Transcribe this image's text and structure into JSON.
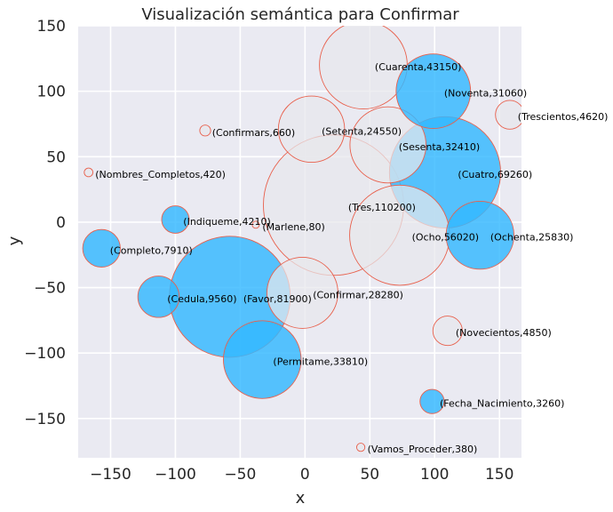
{
  "chart_data": {
    "type": "scatter",
    "title": "Visualización semántica para Confirmar",
    "xlabel": "x",
    "ylabel": "y",
    "xlim": [
      -175,
      167
    ],
    "ylim": [
      -180,
      150
    ],
    "xticks": [
      -150,
      -100,
      -50,
      0,
      50,
      100,
      150
    ],
    "yticks": [
      -150,
      -100,
      -50,
      0,
      50,
      100,
      150
    ],
    "xtick_labels": [
      "−150",
      "−100",
      "−50",
      "0",
      "50",
      "100",
      "150"
    ],
    "ytick_labels": [
      "−150",
      "−100",
      "−50",
      "0",
      "50",
      "100",
      "150"
    ],
    "grid": true,
    "colors": {
      "background": "#EAEAF2",
      "grid": "#FFFFFF",
      "blue": "#33B8FF",
      "gray": "#E8E8EC",
      "edge": "#E8604C"
    },
    "points": [
      {
        "label": "(Favor,81900)",
        "x": -58,
        "y": -57,
        "value": 81900,
        "fill": "blue"
      },
      {
        "label": "(Permitame,33810)",
        "x": -33,
        "y": -105,
        "value": 33810,
        "fill": "blue"
      },
      {
        "label": "(Cuatro,69260)",
        "x": 108,
        "y": 38,
        "value": 69260,
        "fill": "blue"
      },
      {
        "label": "(Ochenta,25830)",
        "x": 135,
        "y": -10,
        "value": 25830,
        "fill": "blue"
      },
      {
        "label": "(Completo,7910)",
        "x": -157,
        "y": -20,
        "value": 7910,
        "fill": "blue"
      },
      {
        "label": "(Cedula,9560)",
        "x": -113,
        "y": -57,
        "value": 9560,
        "fill": "blue"
      },
      {
        "label": "(Indiqueme,4210)",
        "x": -100,
        "y": 2,
        "value": 4210,
        "fill": "blue"
      },
      {
        "label": "(Fecha_Nacimiento,3260)",
        "x": 98,
        "y": -137,
        "value": 3260,
        "fill": "blue"
      },
      {
        "label": "(Noventa,31060)",
        "x": 99,
        "y": 100,
        "value": 31060,
        "fill": "blue"
      },
      {
        "label": "(Setenta,24550)",
        "x": 5,
        "y": 71,
        "value": 24550,
        "fill": "gray"
      },
      {
        "label": "(Confirmar,28280)",
        "x": -2,
        "y": -54,
        "value": 28280,
        "fill": "gray"
      },
      {
        "label": "(Sesenta,32410)",
        "x": 64,
        "y": 59,
        "value": 32410,
        "fill": "gray"
      },
      {
        "label": "(Ocho,56020)",
        "x": 73,
        "y": -10,
        "value": 56020,
        "fill": "gray"
      },
      {
        "label": "(Cuarenta,43150)",
        "x": 45,
        "y": 120,
        "value": 43150,
        "fill": "gray"
      },
      {
        "label": "(Tres,110200)",
        "x": 22,
        "y": 13,
        "value": 110200,
        "fill": "gray"
      },
      {
        "label": "(Trescientos,4620)",
        "x": 158,
        "y": 82,
        "value": 4620,
        "fill": "gray"
      },
      {
        "label": "(Novecientos,4850)",
        "x": 110,
        "y": -83,
        "value": 4850,
        "fill": "gray"
      },
      {
        "label": "(Confirmars,660)",
        "x": -77,
        "y": 70,
        "value": 660,
        "fill": "gray"
      },
      {
        "label": "(Nombres_Completos,420)",
        "x": -167,
        "y": 38,
        "value": 420,
        "fill": "gray"
      },
      {
        "label": "(Marlene,80)",
        "x": -38,
        "y": -2,
        "value": 80,
        "fill": "gray"
      },
      {
        "label": "(Vamos_Proceder,380)",
        "x": 43,
        "y": -172,
        "value": 380,
        "fill": "gray"
      }
    ]
  }
}
